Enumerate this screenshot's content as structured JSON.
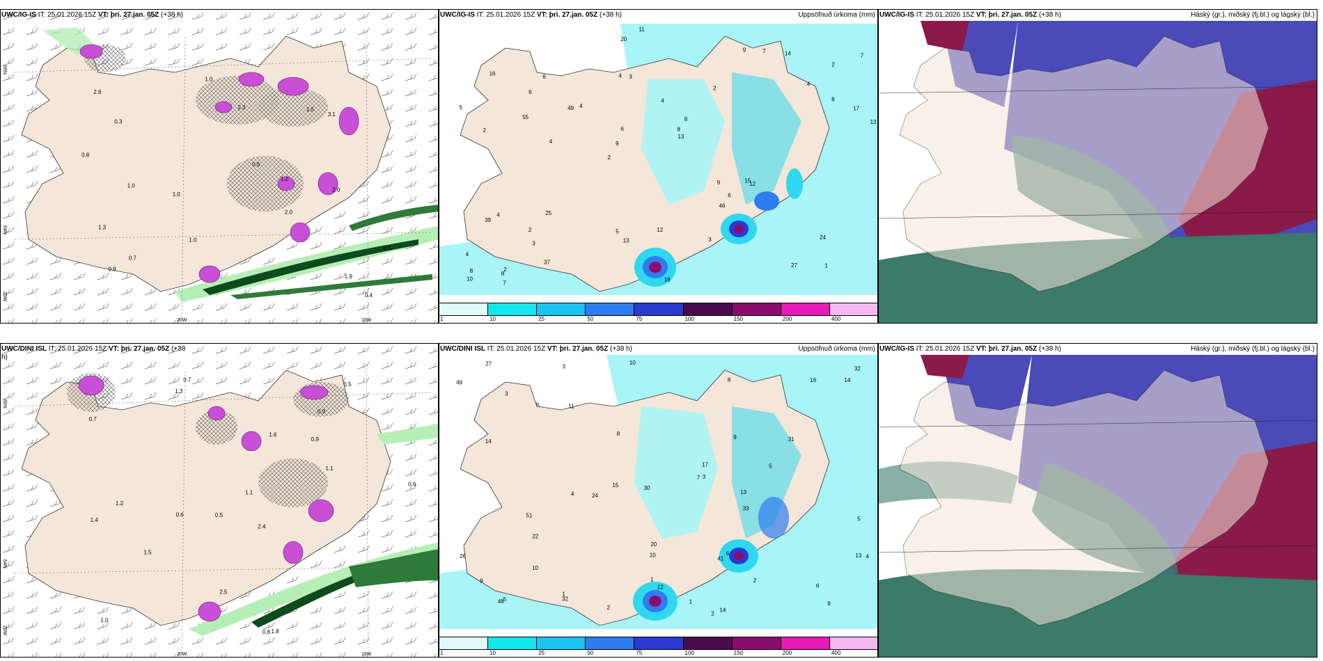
{
  "row1": {
    "left": {
      "title_prefix": "UWC/IG-IS",
      "title_it": " IT: 25.01.2026 15Z ",
      "title_vt_label": "VT:",
      "title_vt": " þri. 27.jan. 05Z",
      "title_lead": " (+38 h)"
    },
    "mid": {
      "title_prefix": "UWC/IG-IS",
      "title_it": " IT: 25.01.2026 15Z ",
      "title_vt_label": "VT:",
      "title_vt": " þri. 27.jan. 05Z",
      "title_lead": " (+38 h)",
      "right_title": "Uppsöfnuð úrkoma (mm)"
    },
    "right": {
      "title_prefix": "UWC/IG-IS",
      "title_it": " IT: 25.01.2026 15Z ",
      "title_vt_label": "VT:",
      "title_vt": " þri. 27.jan. 05Z",
      "title_lead": " (+38 h)",
      "right_title": "Háský (gr.), miðský (fj.bl.) og lágský (bl.)"
    }
  },
  "row2": {
    "left": {
      "title_prefix": "UWC/DINI ISL",
      "title_it": " IT: 25.01.2026 15Z ",
      "title_vt_label": "VT:",
      "title_vt": " þri. 27.jan. 05Z",
      "title_lead": " (+38",
      "title_lead2": "h)"
    },
    "mid": {
      "title_prefix": "UWC/DINI ISL",
      "title_it": " IT: 25.01.2026 15Z ",
      "title_vt_label": "VT:",
      "title_vt": " þri. 27.jan. 05Z",
      "title_lead": " (+38 h)",
      "right_title": "Uppsöfnuð úrkoma (mm)"
    },
    "right": {
      "title_prefix": "UWC/IG-IS",
      "title_it": " IT: 25.01.2026 15Z ",
      "title_vt_label": "VT:",
      "title_vt": " þri. 27.jan. 05Z",
      "title_lead": " (+38 h)",
      "right_title": "Háský (gr.), miðský (fj.bl.) og lágský (bl.)"
    }
  },
  "axes": {
    "lon_20w": "20W",
    "lon_15w": "15W",
    "lat_66n": "66N",
    "lat_64n": "64N",
    "lat_25w": "25W"
  },
  "colorbar": {
    "ticks": [
      "1",
      "10",
      "25",
      "50",
      "75",
      "100",
      "150",
      "200",
      "400"
    ],
    "colors": [
      "#e0fbfb",
      "#13e8ee",
      "#1bc4ee",
      "#2f7cf0",
      "#2b3ad0",
      "#4b0a4b",
      "#8a0d6e",
      "#e81ab8",
      "#f5b8f2"
    ]
  },
  "colors": {
    "land": "#f4e6d8",
    "sea_precip": "#a8f4f6",
    "precip_mid": "#2fd8f0",
    "cloud_high": "#3c7a6a",
    "cloud_mid": "#4a4ab8",
    "cloud_low": "#8a1a4a",
    "green_light": "#b6efb6",
    "green_dark": "#0d4a1c",
    "pink": "#c84fd6"
  },
  "precip_labels_row1": [
    "1",
    "2",
    "2",
    "2",
    "2",
    "2",
    "4",
    "4",
    "4",
    "4",
    "4",
    "3",
    "3",
    "8",
    "12",
    "16",
    "20",
    "13",
    "9",
    "8",
    "9",
    "5",
    "6",
    "6",
    "9",
    "25",
    "27",
    "24",
    "15",
    "18",
    "49",
    "55",
    "46",
    "37",
    "17",
    "8",
    "8",
    "13",
    "13",
    "39",
    "4",
    "7",
    "6",
    "3",
    "2",
    "7",
    "10",
    "12",
    "14",
    "11",
    "4",
    "5",
    "6",
    "7",
    "8"
  ],
  "precip_labels_row2": [
    "2",
    "2",
    "1",
    "2",
    "3",
    "3",
    "4",
    "9",
    "10",
    "8",
    "16",
    "12",
    "15",
    "10",
    "8",
    "7",
    "14",
    "32",
    "24",
    "49",
    "41",
    "32",
    "17",
    "48",
    "31",
    "51",
    "26",
    "22",
    "27",
    "33",
    "30",
    "14",
    "20",
    "14",
    "10",
    "13",
    "13",
    "9",
    "9",
    "6",
    "3",
    "5",
    "4",
    "5",
    "11",
    "6",
    "5",
    "1",
    "6",
    "1"
  ],
  "wind_labels_row1": [
    "0.4",
    "1.0",
    "2.0",
    "2.6",
    "0.5",
    "0.3",
    "0.7",
    "1.0",
    "3.1",
    "2.3",
    "1.5",
    "1.9",
    "1.0",
    "1.0",
    "1.2",
    "1.3",
    "2.0",
    "0.5",
    "0.8",
    "0.9"
  ],
  "wind_labels_row2": [
    "0.7",
    "0.9",
    "0.6",
    "0.5",
    "2.4",
    "1.2",
    "0.7",
    "0.9",
    "1.4",
    "1.6",
    "1.1",
    "1.0",
    "1.3",
    "0.6",
    "0.8",
    "1.8",
    "2.5",
    "0.5",
    "1.1",
    "1.5"
  ]
}
